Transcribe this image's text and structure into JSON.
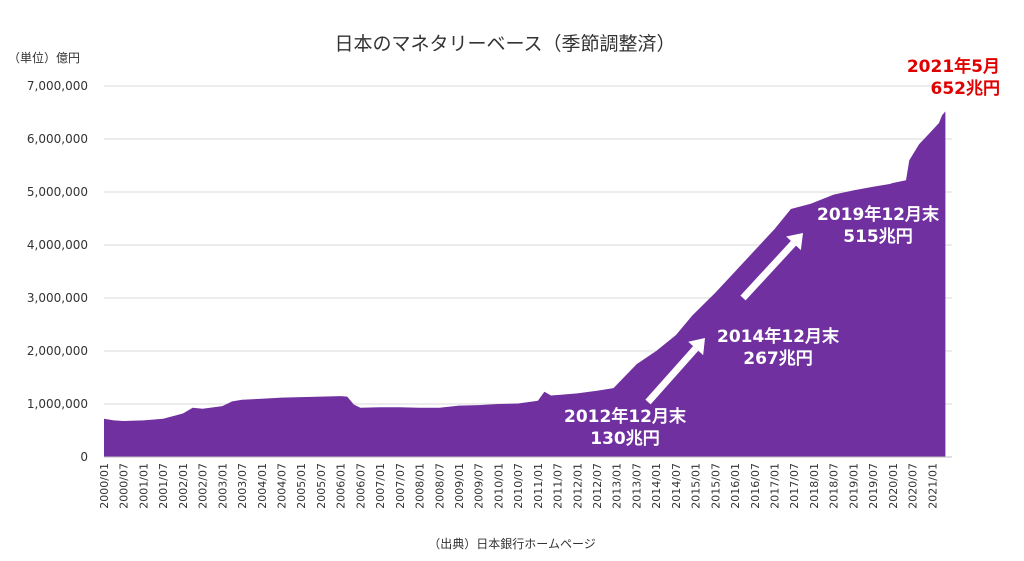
{
  "chart_data": {
    "type": "area",
    "title": "日本のマネタリーベース（季節調整済）",
    "unit_label": "（単位）億円",
    "source": "（出典）日本銀行ホームページ",
    "ylim": [
      0,
      7000000
    ],
    "yticks": [
      "0",
      "1,000,000",
      "2,000,000",
      "3,000,000",
      "4,000,000",
      "5,000,000",
      "6,000,000",
      "7,000,000"
    ],
    "x_tick_labels": [
      "2000/01",
      "2000/07",
      "2001/01",
      "2001/07",
      "2002/01",
      "2002/07",
      "2003/01",
      "2003/07",
      "2004/01",
      "2004/07",
      "2005/01",
      "2005/07",
      "2006/01",
      "2006/07",
      "2007/01",
      "2007/07",
      "2008/01",
      "2008/07",
      "2009/01",
      "2009/07",
      "2010/01",
      "2010/07",
      "2011/01",
      "2011/07",
      "2012/01",
      "2012/07",
      "2013/01",
      "2013/07",
      "2014/01",
      "2014/07",
      "2015/01",
      "2015/07",
      "2016/01",
      "2016/07",
      "2017/01",
      "2017/07",
      "2018/01",
      "2018/07",
      "2019/01",
      "2019/07",
      "2020/01",
      "2020/07",
      "2021/01"
    ],
    "series": [
      {
        "color": "#7030a0",
        "points": [
          [
            "2000/01",
            720000
          ],
          [
            "2000/04",
            690000
          ],
          [
            "2000/07",
            680000
          ],
          [
            "2001/01",
            690000
          ],
          [
            "2001/07",
            720000
          ],
          [
            "2002/01",
            820000
          ],
          [
            "2002/04",
            930000
          ],
          [
            "2002/07",
            910000
          ],
          [
            "2003/01",
            960000
          ],
          [
            "2003/04",
            1050000
          ],
          [
            "2003/07",
            1080000
          ],
          [
            "2004/01",
            1100000
          ],
          [
            "2004/07",
            1120000
          ],
          [
            "2005/01",
            1130000
          ],
          [
            "2005/07",
            1140000
          ],
          [
            "2006/01",
            1150000
          ],
          [
            "2006/03",
            1140000
          ],
          [
            "2006/05",
            990000
          ],
          [
            "2006/07",
            930000
          ],
          [
            "2007/01",
            940000
          ],
          [
            "2007/07",
            940000
          ],
          [
            "2008/01",
            930000
          ],
          [
            "2008/07",
            930000
          ],
          [
            "2009/01",
            970000
          ],
          [
            "2009/07",
            980000
          ],
          [
            "2010/01",
            1000000
          ],
          [
            "2010/07",
            1010000
          ],
          [
            "2011/01",
            1060000
          ],
          [
            "2011/03",
            1230000
          ],
          [
            "2011/05",
            1160000
          ],
          [
            "2011/07",
            1170000
          ],
          [
            "2012/01",
            1200000
          ],
          [
            "2012/07",
            1250000
          ],
          [
            "2012/12",
            1300000
          ],
          [
            "2013/07",
            1750000
          ],
          [
            "2014/01",
            2000000
          ],
          [
            "2014/07",
            2300000
          ],
          [
            "2014/12",
            2670000
          ],
          [
            "2015/07",
            3100000
          ],
          [
            "2016/01",
            3500000
          ],
          [
            "2016/07",
            3900000
          ],
          [
            "2017/01",
            4300000
          ],
          [
            "2017/06",
            4680000
          ],
          [
            "2017/12",
            4780000
          ],
          [
            "2018/07",
            4950000
          ],
          [
            "2019/01",
            5030000
          ],
          [
            "2019/07",
            5100000
          ],
          [
            "2019/12",
            5150000
          ],
          [
            "2020/01",
            5170000
          ],
          [
            "2020/05",
            5220000
          ],
          [
            "2020/06",
            5600000
          ],
          [
            "2020/09",
            5900000
          ],
          [
            "2020/12",
            6100000
          ],
          [
            "2021/03",
            6300000
          ],
          [
            "2021/04",
            6450000
          ],
          [
            "2021/05",
            6520000
          ]
        ]
      }
    ],
    "annotations": [
      {
        "lines": [
          "2012年12月末",
          "130兆円"
        ],
        "color": "white"
      },
      {
        "lines": [
          "2014年12月末",
          "267兆円"
        ],
        "color": "white"
      },
      {
        "lines": [
          "2019年12月末",
          "515兆円"
        ],
        "color": "white"
      },
      {
        "lines": [
          "2021年5月",
          "652兆円"
        ],
        "color": "red"
      }
    ]
  }
}
